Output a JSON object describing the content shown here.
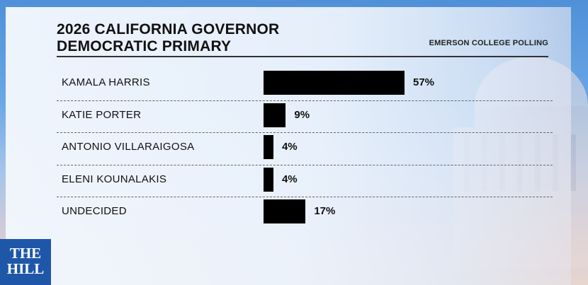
{
  "chart_data": {
    "type": "bar",
    "orientation": "horizontal",
    "title": "2026 CALIFORNIA GOVERNOR\nDEMOCRATIC PRIMARY",
    "source": "EMERSON COLLEGE POLLING",
    "categories": [
      "KAMALA HARRIS",
      "KATIE PORTER",
      "ANTONIO VILLARAIGOSA",
      "ELENI KOUNALAKIS",
      "UNDECIDED"
    ],
    "values": [
      57,
      9,
      4,
      4,
      17
    ],
    "value_labels": [
      "57%",
      "9%",
      "4%",
      "4%",
      "17%"
    ],
    "bar_color": "#000000",
    "grid": false
  },
  "logo": {
    "line1": "THE",
    "line2": "HILL",
    "color": "#1f57a8"
  }
}
